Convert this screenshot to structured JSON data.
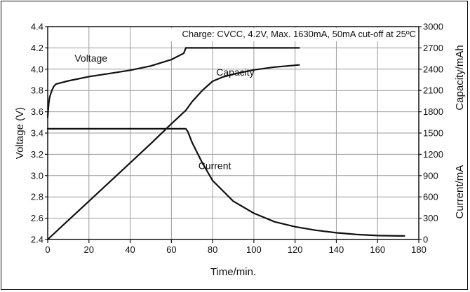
{
  "chart_data": {
    "type": "line",
    "annotation": "Charge:  CVCC, 4.2V, Max. 1630mA, 50mA cut-off at 25ºC",
    "xlabel": "Time/min.",
    "ylabel_left": "Voltage (V)",
    "ylabel_right_top": "Capacity/mAh",
    "ylabel_right_bottom": "Current/mA",
    "xlim": [
      0,
      180
    ],
    "ylim_left": [
      2.4,
      4.4
    ],
    "ylim_right": [
      0,
      3000
    ],
    "grid": true,
    "x_ticks": [
      "0",
      "20",
      "40",
      "60",
      "80",
      "100",
      "120",
      "140",
      "160",
      "180"
    ],
    "y_left_ticks": [
      "2.4",
      "2.6",
      "2.8",
      "3.0",
      "3.2",
      "3.4",
      "3.6",
      "3.8",
      "4.0",
      "4.2",
      "4.4"
    ],
    "y_right_ticks": [
      "0",
      "300",
      "600",
      "900",
      "1200",
      "1500",
      "1800",
      "2100",
      "2400",
      "2700",
      "3000"
    ],
    "series": [
      {
        "name": "Voltage",
        "axis": "left",
        "x": [
          0,
          0.5,
          1,
          2,
          3,
          4,
          6,
          10,
          20,
          30,
          40,
          50,
          60,
          66,
          67,
          80,
          100,
          120,
          122
        ],
        "y": [
          3.55,
          3.68,
          3.74,
          3.8,
          3.84,
          3.86,
          3.87,
          3.89,
          3.93,
          3.96,
          3.99,
          4.03,
          4.09,
          4.15,
          4.2,
          4.2,
          4.2,
          4.2,
          4.2
        ]
      },
      {
        "name": "Capacity",
        "axis": "right",
        "x": [
          0,
          10,
          20,
          30,
          40,
          50,
          60,
          67,
          70,
          75,
          80,
          85,
          90,
          100,
          110,
          122
        ],
        "y": [
          0,
          270,
          540,
          810,
          1080,
          1350,
          1630,
          1820,
          1940,
          2100,
          2230,
          2290,
          2330,
          2390,
          2430,
          2460
        ]
      },
      {
        "name": "Current",
        "axis": "right",
        "x": [
          0,
          60,
          66,
          67,
          68,
          70,
          75,
          80,
          90,
          100,
          110,
          120,
          130,
          140,
          150,
          160,
          170,
          173
        ],
        "y": [
          1560,
          1560,
          1560,
          1560,
          1520,
          1370,
          1080,
          830,
          540,
          370,
          250,
          180,
          130,
          95,
          70,
          55,
          50,
          50
        ]
      }
    ],
    "series_labels": [
      {
        "name": "Voltage",
        "x": 21,
        "y": 4.07,
        "axis": "left"
      },
      {
        "name": "Capacity",
        "x": 91,
        "y": 2310,
        "axis": "right"
      },
      {
        "name": "Current",
        "x": 81,
        "y": 990,
        "axis": "right"
      }
    ]
  }
}
